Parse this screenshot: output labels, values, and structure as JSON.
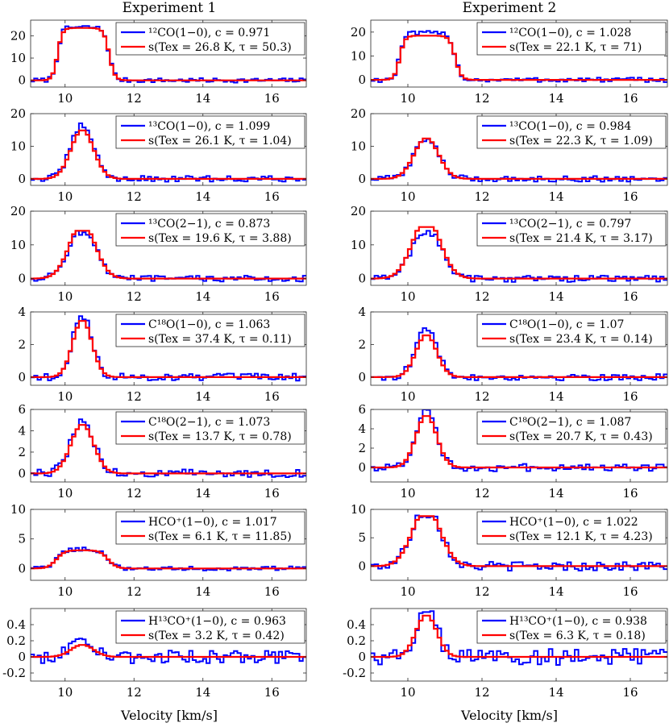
{
  "figure": {
    "columns": [
      "Experiment 1",
      "Experiment 2"
    ],
    "xlabel": "Velocity [km/s]"
  },
  "chart_data": [
    {
      "type": "line",
      "panel": "exp1-12co10",
      "title": "Experiment 1",
      "xlim": [
        9,
        17
      ],
      "ylim": [
        -3,
        27
      ],
      "yticks": [
        0,
        10,
        20
      ],
      "xticks": [
        10,
        12,
        14,
        16
      ],
      "grid": false,
      "legend_position": "top-right",
      "legend": [
        "¹²CO(1−0), c = 0.971",
        "s(Tex = 26.8 K, τ = 50.3)"
      ],
      "series": [
        {
          "name": "¹²CO(1−0), c = 0.971",
          "color": "#0000ff",
          "style": "stairs",
          "amp": 23.5,
          "amp_data": 23.8,
          "shape": "flat",
          "noise": 1.0
        },
        {
          "name": "s(Tex = 26.8 K, τ = 50.3)",
          "color": "#ff0000",
          "style": "stairs",
          "amp": 23.5,
          "shape": "flat"
        }
      ]
    },
    {
      "type": "line",
      "panel": "exp2-12co10",
      "title": "Experiment 2",
      "xlim": [
        9,
        17
      ],
      "ylim": [
        -3,
        25
      ],
      "yticks": [
        0,
        10,
        20
      ],
      "xticks": [
        10,
        12,
        14,
        16
      ],
      "grid": false,
      "legend_position": "top-right",
      "legend": [
        "¹²CO(1−0), c = 1.028",
        "s(Tex = 22.1 K, τ = 71)"
      ],
      "series": [
        {
          "name": "¹²CO(1−0), c = 1.028",
          "color": "#0000ff",
          "style": "stairs",
          "amp": 18.5,
          "amp_data": 19.5,
          "shape": "flat",
          "noise": 1.0
        },
        {
          "name": "s(Tex = 22.1 K, τ = 71)",
          "color": "#ff0000",
          "style": "stairs",
          "amp": 18.5,
          "shape": "flat"
        }
      ]
    },
    {
      "type": "line",
      "panel": "exp1-13co10",
      "xlim": [
        9,
        17
      ],
      "ylim": [
        -2,
        20
      ],
      "yticks": [
        0,
        10,
        20
      ],
      "xticks": [
        10,
        12,
        14,
        16
      ],
      "grid": false,
      "legend_position": "top-right",
      "legend": [
        "¹³CO(1−0), c = 1.099",
        "s(Tex = 26.1 K, τ = 1.04)"
      ],
      "series": [
        {
          "name": "¹³CO(1−0), c = 1.099",
          "color": "#0000ff",
          "style": "stairs",
          "amp": 15.5,
          "amp_data": 16.5,
          "shape": "gauss",
          "noise": 0.9
        },
        {
          "name": "s(Tex = 26.1 K, τ = 1.04)",
          "color": "#ff0000",
          "style": "stairs",
          "amp": 15.0,
          "shape": "gauss"
        }
      ]
    },
    {
      "type": "line",
      "panel": "exp2-13co10",
      "xlim": [
        9,
        17
      ],
      "ylim": [
        -2,
        20
      ],
      "yticks": [
        0,
        10,
        20
      ],
      "xticks": [
        10,
        12,
        14,
        16
      ],
      "grid": false,
      "legend_position": "top-right",
      "legend": [
        "¹³CO(1−0), c = 0.984",
        "s(Tex = 22.3 K, τ = 1.09)"
      ],
      "series": [
        {
          "name": "¹³CO(1−0), c = 0.984",
          "color": "#0000ff",
          "style": "stairs",
          "amp": 12.5,
          "amp_data": 12.5,
          "shape": "gauss",
          "noise": 0.9
        },
        {
          "name": "s(Tex = 22.3 K, τ = 1.09)",
          "color": "#ff0000",
          "style": "stairs",
          "amp": 12.5,
          "shape": "gauss"
        }
      ]
    },
    {
      "type": "line",
      "panel": "exp1-13co21",
      "xlim": [
        9,
        17
      ],
      "ylim": [
        -2,
        20
      ],
      "yticks": [
        0,
        10,
        20
      ],
      "xticks": [
        10,
        12,
        14,
        16
      ],
      "grid": false,
      "legend_position": "top-right",
      "legend": [
        "¹³CO(2−1), c = 0.873",
        "s(Tex = 19.6 K, τ = 3.88)"
      ],
      "series": [
        {
          "name": "¹³CO(2−1), c = 0.873",
          "color": "#0000ff",
          "style": "stairs",
          "amp": 14.0,
          "amp_data": 13.5,
          "shape": "gauss_sat",
          "noise": 0.9
        },
        {
          "name": "s(Tex = 19.6 K, τ = 3.88)",
          "color": "#ff0000",
          "style": "stairs",
          "amp": 14.2,
          "shape": "gauss_sat"
        }
      ]
    },
    {
      "type": "line",
      "panel": "exp2-13co21",
      "xlim": [
        9,
        17
      ],
      "ylim": [
        -2,
        20
      ],
      "yticks": [
        0,
        10,
        20
      ],
      "xticks": [
        10,
        12,
        14,
        16
      ],
      "grid": false,
      "legend_position": "top-right",
      "legend": [
        "¹³CO(2−1), c = 0.797",
        "s(Tex = 21.4 K, τ = 3.17)"
      ],
      "series": [
        {
          "name": "¹³CO(2−1), c = 0.797",
          "color": "#0000ff",
          "style": "stairs",
          "amp": 12.5,
          "amp_data": 13.5,
          "shape": "gauss_sat",
          "noise": 1.0
        },
        {
          "name": "s(Tex = 21.4 K, τ = 3.17)",
          "color": "#ff0000",
          "style": "stairs",
          "amp": 15.3,
          "shape": "gauss_sat"
        }
      ]
    },
    {
      "type": "line",
      "panel": "exp1-c18o10",
      "xlim": [
        9,
        17
      ],
      "ylim": [
        -0.5,
        4
      ],
      "yticks": [
        0,
        2,
        4
      ],
      "xticks": [
        10,
        12,
        14,
        16
      ],
      "grid": false,
      "legend_position": "top-right",
      "legend": [
        "C¹⁸O(1−0), c = 1.063",
        "s(Tex = 37.4 K, τ = 0.11)"
      ],
      "series": [
        {
          "name": "C¹⁸O(1−0), c = 1.063",
          "color": "#0000ff",
          "style": "stairs",
          "amp": 3.6,
          "amp_data": 3.8,
          "shape": "gauss_narrow",
          "noise": 0.22
        },
        {
          "name": "s(Tex = 37.4 K, τ = 0.11)",
          "color": "#ff0000",
          "style": "stairs",
          "amp": 3.5,
          "shape": "gauss_narrow"
        }
      ]
    },
    {
      "type": "line",
      "panel": "exp2-c18o10",
      "xlim": [
        9,
        17
      ],
      "ylim": [
        -0.5,
        4
      ],
      "yticks": [
        0,
        2,
        4
      ],
      "xticks": [
        10,
        12,
        14,
        16
      ],
      "grid": false,
      "legend_position": "top-right",
      "legend": [
        "C¹⁸O(1−0), c = 1.07",
        "s(Tex = 23.4 K, τ = 0.14)"
      ],
      "series": [
        {
          "name": "C¹⁸O(1−0), c = 1.07",
          "color": "#0000ff",
          "style": "stairs",
          "amp": 2.8,
          "amp_data": 3.0,
          "shape": "gauss_narrow",
          "noise": 0.2
        },
        {
          "name": "s(Tex = 23.4 K, τ = 0.14)",
          "color": "#ff0000",
          "style": "stairs",
          "amp": 2.6,
          "shape": "gauss_narrow"
        }
      ]
    },
    {
      "type": "line",
      "panel": "exp1-c18o21",
      "xlim": [
        9,
        17
      ],
      "ylim": [
        -0.8,
        6
      ],
      "yticks": [
        0,
        2,
        4,
        6
      ],
      "xticks": [
        10,
        12,
        14,
        16
      ],
      "grid": false,
      "legend_position": "top-right",
      "legend": [
        "C¹⁸O(2−1), c = 1.073",
        "s(Tex = 13.7 K, τ = 0.78)"
      ],
      "series": [
        {
          "name": "C¹⁸O(2−1), c = 1.073",
          "color": "#0000ff",
          "style": "stairs",
          "amp": 4.8,
          "amp_data": 4.9,
          "shape": "gauss",
          "noise": 0.4
        },
        {
          "name": "s(Tex = 13.7 K, τ = 0.78)",
          "color": "#ff0000",
          "style": "stairs",
          "amp": 4.6,
          "shape": "gauss"
        }
      ]
    },
    {
      "type": "line",
      "panel": "exp2-c18o21",
      "xlim": [
        9,
        17
      ],
      "ylim": [
        -1.5,
        6
      ],
      "yticks": [
        0,
        2,
        4,
        6
      ],
      "xticks": [
        10,
        12,
        14,
        16
      ],
      "grid": false,
      "legend_position": "top-right",
      "legend": [
        "C¹⁸O(2−1), c = 1.087",
        "s(Tex = 20.7 K, τ = 0.43)"
      ],
      "series": [
        {
          "name": "C¹⁸O(2−1), c = 1.087",
          "color": "#0000ff",
          "style": "stairs",
          "amp": 5.6,
          "amp_data": 5.9,
          "shape": "gauss_narrow",
          "noise": 0.4
        },
        {
          "name": "s(Tex = 20.7 K, τ = 0.43)",
          "color": "#ff0000",
          "style": "stairs",
          "amp": 5.4,
          "shape": "gauss_narrow"
        }
      ]
    },
    {
      "type": "line",
      "panel": "exp1-hco10",
      "xlim": [
        9,
        17
      ],
      "ylim": [
        -2,
        10
      ],
      "yticks": [
        0,
        5,
        10
      ],
      "xticks": [
        10,
        12,
        14,
        16
      ],
      "grid": false,
      "legend_position": "top-right",
      "legend": [
        "HCO⁺(1−0), c = 1.017",
        "s(Tex = 6.1 K, τ = 11.85)"
      ],
      "series": [
        {
          "name": "HCO⁺(1−0), c = 1.017",
          "color": "#0000ff",
          "style": "stairs",
          "amp": 3.2,
          "amp_data": 3.3,
          "shape": "flat_soft",
          "noise": 0.35
        },
        {
          "name": "s(Tex = 6.1 K, τ = 11.85)",
          "color": "#ff0000",
          "style": "stairs",
          "amp": 3.1,
          "shape": "flat_soft"
        }
      ]
    },
    {
      "type": "line",
      "panel": "exp2-hco10",
      "xlim": [
        9,
        17
      ],
      "ylim": [
        -2.5,
        10
      ],
      "yticks": [
        0,
        5,
        10
      ],
      "xticks": [
        10,
        12,
        14,
        16
      ],
      "grid": false,
      "legend_position": "top-right",
      "legend": [
        "HCO⁺(1−0), c = 1.022",
        "s(Tex = 12.1 K, τ = 4.23)"
      ],
      "series": [
        {
          "name": "HCO⁺(1−0), c = 1.022",
          "color": "#0000ff",
          "style": "stairs",
          "amp": 9.0,
          "amp_data": 9.2,
          "shape": "gauss_sat",
          "noise": 0.8
        },
        {
          "name": "s(Tex = 12.1 K, τ = 4.23)",
          "color": "#ff0000",
          "style": "stairs",
          "amp": 8.8,
          "shape": "gauss_sat"
        }
      ]
    },
    {
      "type": "line",
      "panel": "exp1-h13co10",
      "xlim": [
        9,
        17
      ],
      "ylim": [
        -0.3,
        0.6
      ],
      "yticks": [
        -0.2,
        0,
        0.2,
        0.4
      ],
      "xticks": [
        10,
        12,
        14,
        16
      ],
      "xlabel": "Velocity [km/s]",
      "grid": false,
      "legend_position": "top-right",
      "legend": [
        "H¹³CO⁺(1−0), c = 0.963",
        "s(Tex = 3.2 K, τ = 0.42)"
      ],
      "series": [
        {
          "name": "H¹³CO⁺(1−0), c = 0.963",
          "color": "#0000ff",
          "style": "stairs",
          "amp": 0.17,
          "amp_data": 0.25,
          "shape": "gauss",
          "noise": 0.08
        },
        {
          "name": "s(Tex = 3.2 K, τ = 0.42)",
          "color": "#ff0000",
          "style": "stairs",
          "amp": 0.15,
          "shape": "gauss"
        }
      ]
    },
    {
      "type": "line",
      "panel": "exp2-h13co10",
      "xlim": [
        9,
        17
      ],
      "ylim": [
        -0.3,
        0.6
      ],
      "yticks": [
        -0.2,
        0,
        0.2,
        0.4
      ],
      "xticks": [
        10,
        12,
        14,
        16
      ],
      "xlabel": "Velocity [km/s]",
      "grid": false,
      "legend_position": "top-right",
      "legend": [
        "H¹³CO⁺(1−0), c = 0.938",
        "s(Tex = 6.3 K, τ = 0.18)"
      ],
      "series": [
        {
          "name": "H¹³CO⁺(1−0), c = 0.938",
          "color": "#0000ff",
          "style": "stairs",
          "amp": 0.52,
          "amp_data": 0.56,
          "shape": "gauss_narrow",
          "noise": 0.1
        },
        {
          "name": "s(Tex = 6.3 K, τ = 0.18)",
          "color": "#ff0000",
          "style": "stairs",
          "amp": 0.52,
          "shape": "gauss_narrow"
        }
      ]
    }
  ]
}
